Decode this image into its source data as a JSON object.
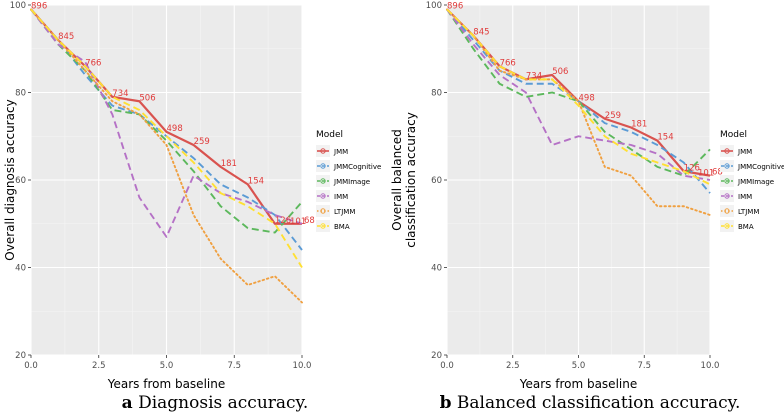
{
  "chart_data": [
    {
      "type": "line",
      "panel_label": "a",
      "caption": "Diagnosis accuracy.",
      "xlabel": "Years from baseline",
      "ylabel": "Overall diagnosis accuracy",
      "xlim": [
        0,
        10
      ],
      "ylim": [
        20,
        100
      ],
      "x_ticks": [
        "0.0",
        "2.5",
        "5.0",
        "7.5",
        "10.0"
      ],
      "y_ticks": [
        "20",
        "40",
        "60",
        "80",
        "100"
      ],
      "grid": true,
      "x": [
        0,
        1,
        2,
        3,
        4,
        5,
        6,
        7,
        8,
        9,
        10
      ],
      "series": [
        {
          "name": "JMM",
          "color": "#d9534f",
          "dash": "solid",
          "values": [
            99,
            92,
            86,
            79,
            78,
            71,
            68,
            63,
            59,
            50,
            50
          ]
        },
        {
          "name": "JMMCognitive",
          "color": "#5b9bd5",
          "dash": "dashed",
          "values": [
            99,
            92,
            84,
            77,
            75,
            70,
            65,
            59,
            56,
            52,
            44
          ]
        },
        {
          "name": "JMMImage",
          "color": "#5cb85c",
          "dash": "dashed",
          "values": [
            99,
            91,
            85,
            76,
            75,
            69,
            62,
            54,
            49,
            48,
            55
          ]
        },
        {
          "name": "IMM",
          "color": "#b571c6",
          "dash": "dashed",
          "values": [
            99,
            91,
            87,
            75,
            56,
            47,
            61,
            57,
            55,
            52,
            50
          ]
        },
        {
          "name": "LTJMM",
          "color": "#f0a040",
          "dash": "dotted",
          "values": [
            99,
            92,
            85,
            78,
            75,
            68,
            52,
            42,
            36,
            38,
            32
          ]
        },
        {
          "name": "BMA",
          "color": "#ffe033",
          "dash": "dashed",
          "values": [
            99,
            92,
            86,
            79,
            76,
            70,
            64,
            57,
            54,
            50,
            40
          ]
        }
      ],
      "annotations": [
        {
          "x": 0,
          "y": 99,
          "text": "896"
        },
        {
          "x": 1,
          "y": 92,
          "text": "845"
        },
        {
          "x": 2,
          "y": 86,
          "text": "766"
        },
        {
          "x": 3,
          "y": 79,
          "text": "734"
        },
        {
          "x": 4,
          "y": 78,
          "text": "506"
        },
        {
          "x": 5,
          "y": 71,
          "text": "498"
        },
        {
          "x": 6,
          "y": 68,
          "text": "259"
        },
        {
          "x": 7,
          "y": 63,
          "text": "181"
        },
        {
          "x": 8,
          "y": 59,
          "text": "154"
        },
        {
          "x": 9,
          "y": 50,
          "text": "126"
        },
        {
          "x": 10,
          "y": 50,
          "text": "101"
        },
        {
          "x": 10,
          "y": 50,
          "text": "68"
        }
      ],
      "legend_title": "Model",
      "legend_position": "right"
    },
    {
      "type": "line",
      "panel_label": "b",
      "caption": "Balanced classification accuracy.",
      "xlabel": "Years from baseline",
      "ylabel": "Overall balanced\nclassification accuracy",
      "xlim": [
        0,
        10
      ],
      "ylim": [
        20,
        100
      ],
      "x_ticks": [
        "0.0",
        "2.5",
        "5.0",
        "7.5",
        "10.0"
      ],
      "y_ticks": [
        "20",
        "40",
        "60",
        "80",
        "100"
      ],
      "grid": true,
      "x": [
        0,
        1,
        2,
        3,
        4,
        5,
        6,
        7,
        8,
        9,
        10
      ],
      "series": [
        {
          "name": "JMM",
          "color": "#d9534f",
          "dash": "solid",
          "values": [
            99,
            93,
            86,
            83,
            84,
            78,
            74,
            72,
            69,
            62,
            61
          ]
        },
        {
          "name": "JMMCognitive",
          "color": "#5b9bd5",
          "dash": "dashed",
          "values": [
            99,
            92,
            85,
            82,
            82,
            78,
            73,
            71,
            68,
            64,
            57
          ]
        },
        {
          "name": "JMMImage",
          "color": "#5cb85c",
          "dash": "dashed",
          "values": [
            99,
            90,
            82,
            79,
            80,
            78,
            71,
            67,
            63,
            61,
            67
          ]
        },
        {
          "name": "IMM",
          "color": "#b571c6",
          "dash": "dashed",
          "values": [
            99,
            91,
            84,
            80,
            68,
            70,
            69,
            68,
            66,
            61,
            60
          ]
        },
        {
          "name": "LTJMM",
          "color": "#f0a040",
          "dash": "dotted",
          "values": [
            99,
            93,
            85,
            83,
            83,
            78,
            63,
            61,
            54,
            54,
            52
          ]
        },
        {
          "name": "BMA",
          "color": "#ffe033",
          "dash": "dashed",
          "values": [
            99,
            93,
            86,
            83,
            83,
            77,
            70,
            66,
            64,
            62,
            59
          ]
        }
      ],
      "annotations": [
        {
          "x": 0,
          "y": 99,
          "text": "896"
        },
        {
          "x": 1,
          "y": 93,
          "text": "845"
        },
        {
          "x": 2,
          "y": 86,
          "text": "766"
        },
        {
          "x": 3,
          "y": 83,
          "text": "734"
        },
        {
          "x": 4,
          "y": 84,
          "text": "506"
        },
        {
          "x": 5,
          "y": 78,
          "text": "498"
        },
        {
          "x": 6,
          "y": 74,
          "text": "259"
        },
        {
          "x": 7,
          "y": 72,
          "text": "181"
        },
        {
          "x": 8,
          "y": 69,
          "text": "154"
        },
        {
          "x": 9,
          "y": 62,
          "text": "126"
        },
        {
          "x": 10,
          "y": 61,
          "text": "101"
        },
        {
          "x": 10,
          "y": 61,
          "text": "68"
        }
      ],
      "legend_title": "Model",
      "legend_position": "right"
    }
  ]
}
